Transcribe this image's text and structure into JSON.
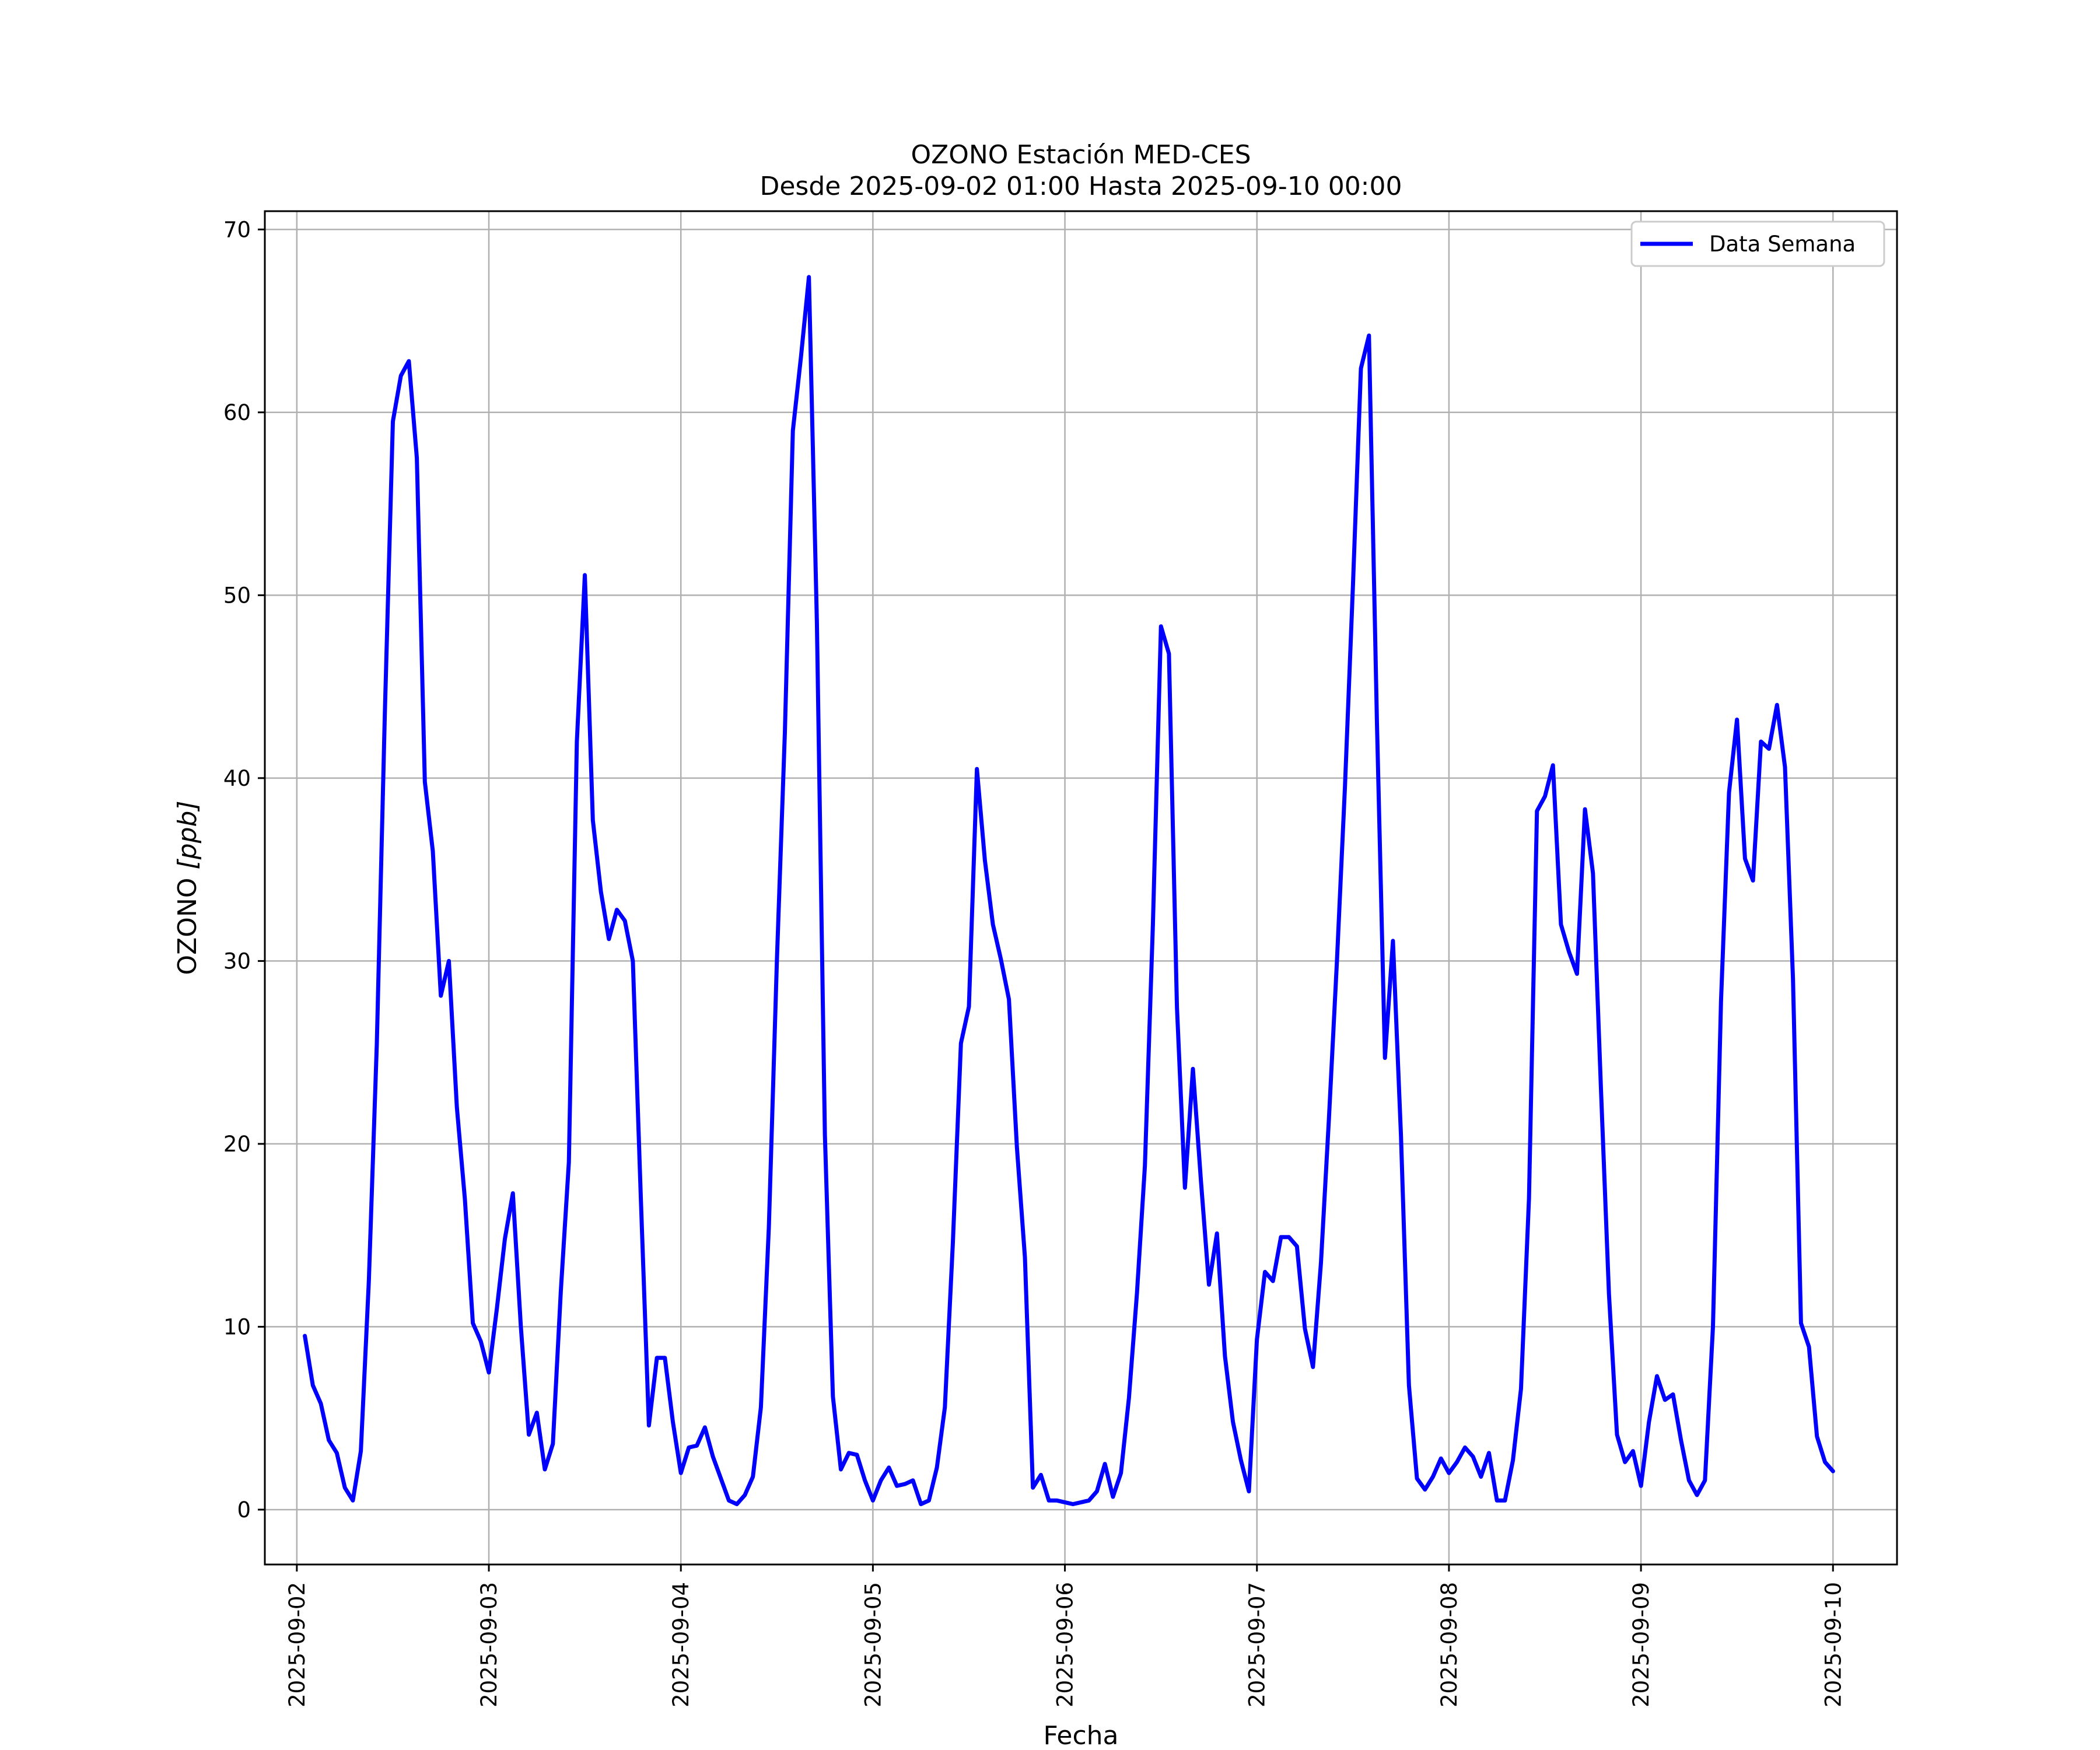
{
  "chart_data": {
    "type": "line",
    "title": "OZONO Estación MED-CES",
    "subtitle": "Desde 2025-09-02 01:00 Hasta 2025-09-10 00:00",
    "xlabel": "Fecha",
    "ylabel_main": "OZONO ",
    "ylabel_unit": "[ppb]",
    "x_tick_labels": [
      "2025-09-02",
      "2025-09-03",
      "2025-09-04",
      "2025-09-05",
      "2025-09-06",
      "2025-09-07",
      "2025-09-08",
      "2025-09-09",
      "2025-09-10"
    ],
    "y_ticks": [
      0,
      10,
      20,
      30,
      40,
      50,
      60,
      70
    ],
    "xlim": [
      "2025-09-01 20:00",
      "2025-09-10 08:00"
    ],
    "ylim": [
      -3,
      71
    ],
    "grid": true,
    "legend_position": "top-right",
    "series": [
      {
        "name": "Data Semana",
        "color": "#0000ff",
        "x": [
          "2025-09-02 01:00",
          "2025-09-02 02:00",
          "2025-09-02 03:00",
          "2025-09-02 04:00",
          "2025-09-02 05:00",
          "2025-09-02 06:00",
          "2025-09-02 07:00",
          "2025-09-02 08:00",
          "2025-09-02 09:00",
          "2025-09-02 10:00",
          "2025-09-02 11:00",
          "2025-09-02 12:00",
          "2025-09-02 13:00",
          "2025-09-02 14:00",
          "2025-09-02 15:00",
          "2025-09-02 16:00",
          "2025-09-02 17:00",
          "2025-09-02 18:00",
          "2025-09-02 19:00",
          "2025-09-02 20:00",
          "2025-09-02 21:00",
          "2025-09-02 22:00",
          "2025-09-02 23:00",
          "2025-09-03 00:00",
          "2025-09-03 01:00",
          "2025-09-03 02:00",
          "2025-09-03 03:00",
          "2025-09-03 04:00",
          "2025-09-03 05:00",
          "2025-09-03 06:00",
          "2025-09-03 07:00",
          "2025-09-03 08:00",
          "2025-09-03 09:00",
          "2025-09-03 10:00",
          "2025-09-03 11:00",
          "2025-09-03 12:00",
          "2025-09-03 13:00",
          "2025-09-03 14:00",
          "2025-09-03 15:00",
          "2025-09-03 16:00",
          "2025-09-03 17:00",
          "2025-09-03 18:00",
          "2025-09-03 19:00",
          "2025-09-03 20:00",
          "2025-09-03 21:00",
          "2025-09-03 22:00",
          "2025-09-03 23:00",
          "2025-09-04 00:00",
          "2025-09-04 01:00",
          "2025-09-04 02:00",
          "2025-09-04 03:00",
          "2025-09-04 04:00",
          "2025-09-04 05:00",
          "2025-09-04 06:00",
          "2025-09-04 07:00",
          "2025-09-04 08:00",
          "2025-09-04 09:00",
          "2025-09-04 10:00",
          "2025-09-04 11:00",
          "2025-09-04 12:00",
          "2025-09-04 13:00",
          "2025-09-04 14:00",
          "2025-09-04 15:00",
          "2025-09-04 16:00",
          "2025-09-04 17:00",
          "2025-09-04 18:00",
          "2025-09-04 19:00",
          "2025-09-04 20:00",
          "2025-09-04 21:00",
          "2025-09-04 22:00",
          "2025-09-04 23:00",
          "2025-09-05 00:00",
          "2025-09-05 01:00",
          "2025-09-05 02:00",
          "2025-09-05 03:00",
          "2025-09-05 04:00",
          "2025-09-05 05:00",
          "2025-09-05 06:00",
          "2025-09-05 07:00",
          "2025-09-05 08:00",
          "2025-09-05 09:00",
          "2025-09-05 10:00",
          "2025-09-05 11:00",
          "2025-09-05 12:00",
          "2025-09-05 13:00",
          "2025-09-05 14:00",
          "2025-09-05 15:00",
          "2025-09-05 16:00",
          "2025-09-05 17:00",
          "2025-09-05 18:00",
          "2025-09-05 19:00",
          "2025-09-05 20:00",
          "2025-09-05 21:00",
          "2025-09-05 22:00",
          "2025-09-05 23:00",
          "2025-09-06 00:00",
          "2025-09-06 01:00",
          "2025-09-06 02:00",
          "2025-09-06 03:00",
          "2025-09-06 04:00",
          "2025-09-06 05:00",
          "2025-09-06 06:00",
          "2025-09-06 07:00",
          "2025-09-06 08:00",
          "2025-09-06 09:00",
          "2025-09-06 10:00",
          "2025-09-06 11:00",
          "2025-09-06 12:00",
          "2025-09-06 13:00",
          "2025-09-06 14:00",
          "2025-09-06 15:00",
          "2025-09-06 16:00",
          "2025-09-06 17:00",
          "2025-09-06 18:00",
          "2025-09-06 19:00",
          "2025-09-06 20:00",
          "2025-09-06 21:00",
          "2025-09-06 22:00",
          "2025-09-06 23:00",
          "2025-09-07 00:00",
          "2025-09-07 01:00",
          "2025-09-07 02:00",
          "2025-09-07 03:00",
          "2025-09-07 04:00",
          "2025-09-07 05:00",
          "2025-09-07 06:00",
          "2025-09-07 07:00",
          "2025-09-07 08:00",
          "2025-09-07 09:00",
          "2025-09-07 10:00",
          "2025-09-07 11:00",
          "2025-09-07 12:00",
          "2025-09-07 13:00",
          "2025-09-07 14:00",
          "2025-09-07 15:00",
          "2025-09-07 16:00",
          "2025-09-07 17:00",
          "2025-09-07 18:00",
          "2025-09-07 19:00",
          "2025-09-07 20:00",
          "2025-09-07 21:00",
          "2025-09-07 22:00",
          "2025-09-07 23:00",
          "2025-09-08 00:00",
          "2025-09-08 01:00",
          "2025-09-08 02:00",
          "2025-09-08 03:00",
          "2025-09-08 04:00",
          "2025-09-08 05:00",
          "2025-09-08 06:00",
          "2025-09-08 07:00",
          "2025-09-08 08:00",
          "2025-09-08 09:00",
          "2025-09-08 10:00",
          "2025-09-08 11:00",
          "2025-09-08 12:00",
          "2025-09-08 13:00",
          "2025-09-08 14:00",
          "2025-09-08 15:00",
          "2025-09-08 16:00",
          "2025-09-08 17:00",
          "2025-09-08 18:00",
          "2025-09-08 19:00",
          "2025-09-08 20:00",
          "2025-09-08 21:00",
          "2025-09-08 22:00",
          "2025-09-08 23:00",
          "2025-09-09 00:00",
          "2025-09-09 01:00",
          "2025-09-09 02:00",
          "2025-09-09 03:00",
          "2025-09-09 04:00",
          "2025-09-09 05:00",
          "2025-09-09 06:00",
          "2025-09-09 07:00",
          "2025-09-09 08:00",
          "2025-09-09 09:00",
          "2025-09-09 10:00",
          "2025-09-09 11:00",
          "2025-09-09 12:00",
          "2025-09-09 13:00",
          "2025-09-09 14:00",
          "2025-09-09 15:00",
          "2025-09-09 16:00",
          "2025-09-09 17:00",
          "2025-09-09 18:00",
          "2025-09-09 19:00",
          "2025-09-09 20:00",
          "2025-09-09 21:00",
          "2025-09-09 22:00",
          "2025-09-09 23:00",
          "2025-09-10 00:00"
        ],
        "values": [
          9.5,
          6.8,
          5.8,
          3.8,
          3.1,
          1.2,
          0.5,
          3.2,
          12.5,
          25.5,
          43.5,
          59.5,
          62.0,
          62.8,
          57.5,
          39.8,
          36.0,
          28.1,
          30.0,
          22.0,
          17.0,
          10.2,
          9.2,
          7.5,
          11.0,
          14.8,
          17.3,
          10.0,
          4.1,
          5.3,
          2.2,
          3.6,
          12.0,
          19.0,
          42.0,
          51.1,
          37.7,
          33.8,
          31.2,
          32.8,
          32.2,
          30.0,
          17.0,
          4.6,
          8.3,
          8.3,
          4.8,
          2.0,
          3.4,
          3.5,
          4.5,
          2.9,
          1.7,
          0.5,
          0.3,
          0.8,
          1.8,
          5.6,
          15.5,
          30.0,
          42.5,
          59.0,
          63.0,
          67.4,
          48.5,
          20.5,
          6.2,
          2.2,
          3.1,
          3.0,
          1.6,
          0.5,
          1.6,
          2.3,
          1.3,
          1.4,
          1.6,
          0.3,
          0.5,
          2.3,
          5.6,
          14.6,
          25.5,
          27.5,
          40.5,
          35.5,
          32.0,
          30.1,
          27.9,
          19.8,
          13.8,
          1.2,
          1.9,
          0.5,
          0.5,
          0.4,
          0.3,
          0.4,
          0.5,
          1.0,
          2.5,
          0.7,
          2.0,
          6.1,
          11.8,
          18.8,
          32.0,
          48.3,
          46.8,
          27.5,
          17.6,
          24.1,
          18.0,
          12.3,
          15.1,
          8.4,
          4.8,
          2.7,
          1.0,
          9.3,
          13.0,
          12.5,
          14.9,
          14.9,
          14.4,
          9.9,
          7.8,
          13.5,
          21.4,
          30.0,
          39.5,
          50.5,
          62.4,
          64.2,
          43.0,
          24.7,
          31.1,
          20.5,
          6.8,
          1.7,
          1.1,
          1.8,
          2.8,
          2.0,
          2.6,
          3.4,
          2.9,
          1.8,
          3.1,
          0.5,
          0.5,
          2.7,
          6.6,
          17.0,
          38.2,
          39.0,
          40.7,
          32.0,
          30.5,
          29.3,
          38.3,
          34.8,
          23.0,
          11.8,
          4.1,
          2.6,
          3.2,
          1.3,
          4.8,
          7.3,
          6.0,
          6.3,
          3.8,
          1.6,
          0.8,
          1.6,
          10.0,
          27.8,
          39.2,
          43.2,
          35.6,
          34.4,
          42.0,
          41.6,
          44.0,
          40.6,
          29.0,
          10.2,
          8.9,
          4.0,
          2.6,
          2.1
        ]
      }
    ]
  }
}
